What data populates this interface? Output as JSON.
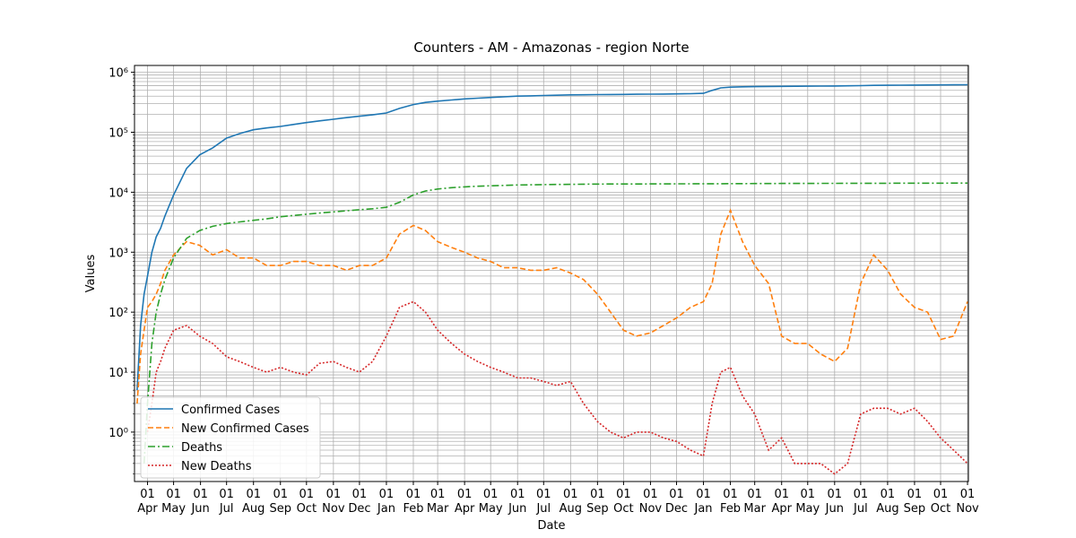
{
  "chart_data": {
    "type": "line",
    "title": "Counters - AM - Amazonas - region Norte",
    "xlabel": "Date",
    "ylabel": "Values",
    "log_y": true,
    "grid": true,
    "legend": "lower left",
    "xlim": [
      -15,
      945
    ],
    "ylim": [
      0.15,
      1300000
    ],
    "yticks": [
      {
        "value": 1,
        "label": "10⁰"
      },
      {
        "value": 10,
        "label": "10¹"
      },
      {
        "value": 100,
        "label": "10²"
      },
      {
        "value": 1000,
        "label": "10³"
      },
      {
        "value": 10000,
        "label": "10⁴"
      },
      {
        "value": 100000,
        "label": "10⁵"
      },
      {
        "value": 1000000,
        "label": "10⁶"
      }
    ],
    "xticks": [
      {
        "value": 0,
        "label": "01\nApr"
      },
      {
        "value": 30,
        "label": "01\nMay"
      },
      {
        "value": 61,
        "label": "01\nJun"
      },
      {
        "value": 91,
        "label": "01\nJul"
      },
      {
        "value": 122,
        "label": "01\nAug"
      },
      {
        "value": 153,
        "label": "01\nSep"
      },
      {
        "value": 183,
        "label": "01\nOct"
      },
      {
        "value": 214,
        "label": "01\nNov"
      },
      {
        "value": 244,
        "label": "01\nDec"
      },
      {
        "value": 275,
        "label": "01\nJan"
      },
      {
        "value": 306,
        "label": "01\nFeb"
      },
      {
        "value": 334,
        "label": "01\nMar"
      },
      {
        "value": 365,
        "label": "01\nApr"
      },
      {
        "value": 395,
        "label": "01\nMay"
      },
      {
        "value": 426,
        "label": "01\nJun"
      },
      {
        "value": 456,
        "label": "01\nJul"
      },
      {
        "value": 487,
        "label": "01\nAug"
      },
      {
        "value": 518,
        "label": "01\nSep"
      },
      {
        "value": 548,
        "label": "01\nOct"
      },
      {
        "value": 579,
        "label": "01\nNov"
      },
      {
        "value": 609,
        "label": "01\nDec"
      },
      {
        "value": 640,
        "label": "01\nJan"
      },
      {
        "value": 671,
        "label": "01\nFeb"
      },
      {
        "value": 699,
        "label": "01\nMar"
      },
      {
        "value": 730,
        "label": "01\nApr"
      },
      {
        "value": 760,
        "label": "01\nMay"
      },
      {
        "value": 791,
        "label": "01\nJun"
      },
      {
        "value": 821,
        "label": "01\nJul"
      },
      {
        "value": 852,
        "label": "01\nAug"
      },
      {
        "value": 883,
        "label": "01\nSep"
      },
      {
        "value": 913,
        "label": "01\nOct"
      },
      {
        "value": 944,
        "label": "01\nNov"
      }
    ],
    "x": [
      -12,
      -8,
      -4,
      0,
      5,
      10,
      15,
      20,
      30,
      45,
      60,
      75,
      91,
      106,
      122,
      137,
      153,
      168,
      183,
      198,
      214,
      229,
      244,
      259,
      275,
      290,
      306,
      320,
      334,
      350,
      365,
      380,
      395,
      410,
      426,
      441,
      456,
      471,
      487,
      502,
      518,
      533,
      548,
      563,
      579,
      594,
      609,
      625,
      640,
      650,
      660,
      671,
      685,
      699,
      715,
      730,
      745,
      760,
      775,
      791,
      806,
      821,
      836,
      852,
      867,
      883,
      898,
      913,
      928,
      944
    ],
    "series": [
      {
        "name": "Confirmed Cases",
        "color": "#1f77b4",
        "dash": "solid",
        "values": [
          5,
          60,
          200,
          400,
          1000,
          1800,
          2500,
          4000,
          9000,
          25000,
          42000,
          55000,
          80000,
          95000,
          110000,
          118000,
          125000,
          135000,
          145000,
          155000,
          165000,
          175000,
          185000,
          195000,
          210000,
          250000,
          290000,
          315000,
          330000,
          345000,
          360000,
          370000,
          380000,
          390000,
          400000,
          405000,
          410000,
          415000,
          420000,
          422000,
          424000,
          426000,
          428000,
          430000,
          432000,
          434000,
          437000,
          440000,
          445000,
          500000,
          550000,
          565000,
          572000,
          577000,
          580000,
          582000,
          584000,
          586000,
          588000,
          590000,
          595000,
          600000,
          605000,
          608000,
          610000,
          612000,
          614000,
          616000,
          618000,
          620000
        ]
      },
      {
        "name": "New Confirmed Cases",
        "color": "#ff7f0e",
        "dash": "dashed",
        "values": [
          3,
          20,
          50,
          120,
          150,
          200,
          300,
          500,
          900,
          1500,
          1300,
          900,
          1100,
          800,
          800,
          600,
          600,
          700,
          700,
          600,
          600,
          500,
          600,
          600,
          800,
          2000,
          2800,
          2300,
          1500,
          1200,
          1000,
          800,
          700,
          550,
          550,
          500,
          500,
          550,
          450,
          350,
          200,
          100,
          50,
          40,
          45,
          60,
          80,
          120,
          150,
          300,
          2000,
          5000,
          1500,
          600,
          300,
          40,
          30,
          30,
          20,
          15,
          25,
          300,
          900,
          500,
          200,
          120,
          100,
          35,
          40,
          150
        ]
      },
      {
        "name": "Deaths",
        "color": "#2ca02c",
        "dash": "dashdot",
        "values": [
          null,
          null,
          0.3,
          3,
          30,
          100,
          200,
          350,
          800,
          1700,
          2300,
          2700,
          3000,
          3200,
          3400,
          3600,
          3900,
          4100,
          4300,
          4500,
          4700,
          4900,
          5100,
          5300,
          5600,
          6800,
          9000,
          10500,
          11300,
          11900,
          12300,
          12600,
          12800,
          13000,
          13200,
          13300,
          13400,
          13500,
          13550,
          13600,
          13650,
          13700,
          13720,
          13740,
          13760,
          13780,
          13800,
          13820,
          13840,
          13860,
          13880,
          13900,
          13920,
          13940,
          13960,
          13980,
          14000,
          14020,
          14040,
          14060,
          14080,
          14100,
          14110,
          14120,
          14130,
          14140,
          14150,
          14160,
          14180,
          14200
        ]
      },
      {
        "name": "New Deaths",
        "color": "#d62728",
        "dash": "dotted",
        "values": [
          null,
          null,
          null,
          1,
          3,
          10,
          15,
          25,
          50,
          60,
          40,
          30,
          18,
          15,
          12,
          10,
          12,
          10,
          9,
          14,
          15,
          12,
          10,
          15,
          40,
          120,
          150,
          100,
          50,
          30,
          20,
          15,
          12,
          10,
          8,
          8,
          7,
          6,
          7,
          3,
          1.5,
          1,
          0.8,
          1,
          1,
          0.8,
          0.7,
          0.5,
          0.4,
          3,
          10,
          12,
          4,
          2,
          0.5,
          0.8,
          0.3,
          0.3,
          0.3,
          0.2,
          0.3,
          2,
          2.5,
          2.5,
          2,
          2.5,
          1.5,
          0.8,
          0.5,
          0.3
        ]
      }
    ]
  }
}
